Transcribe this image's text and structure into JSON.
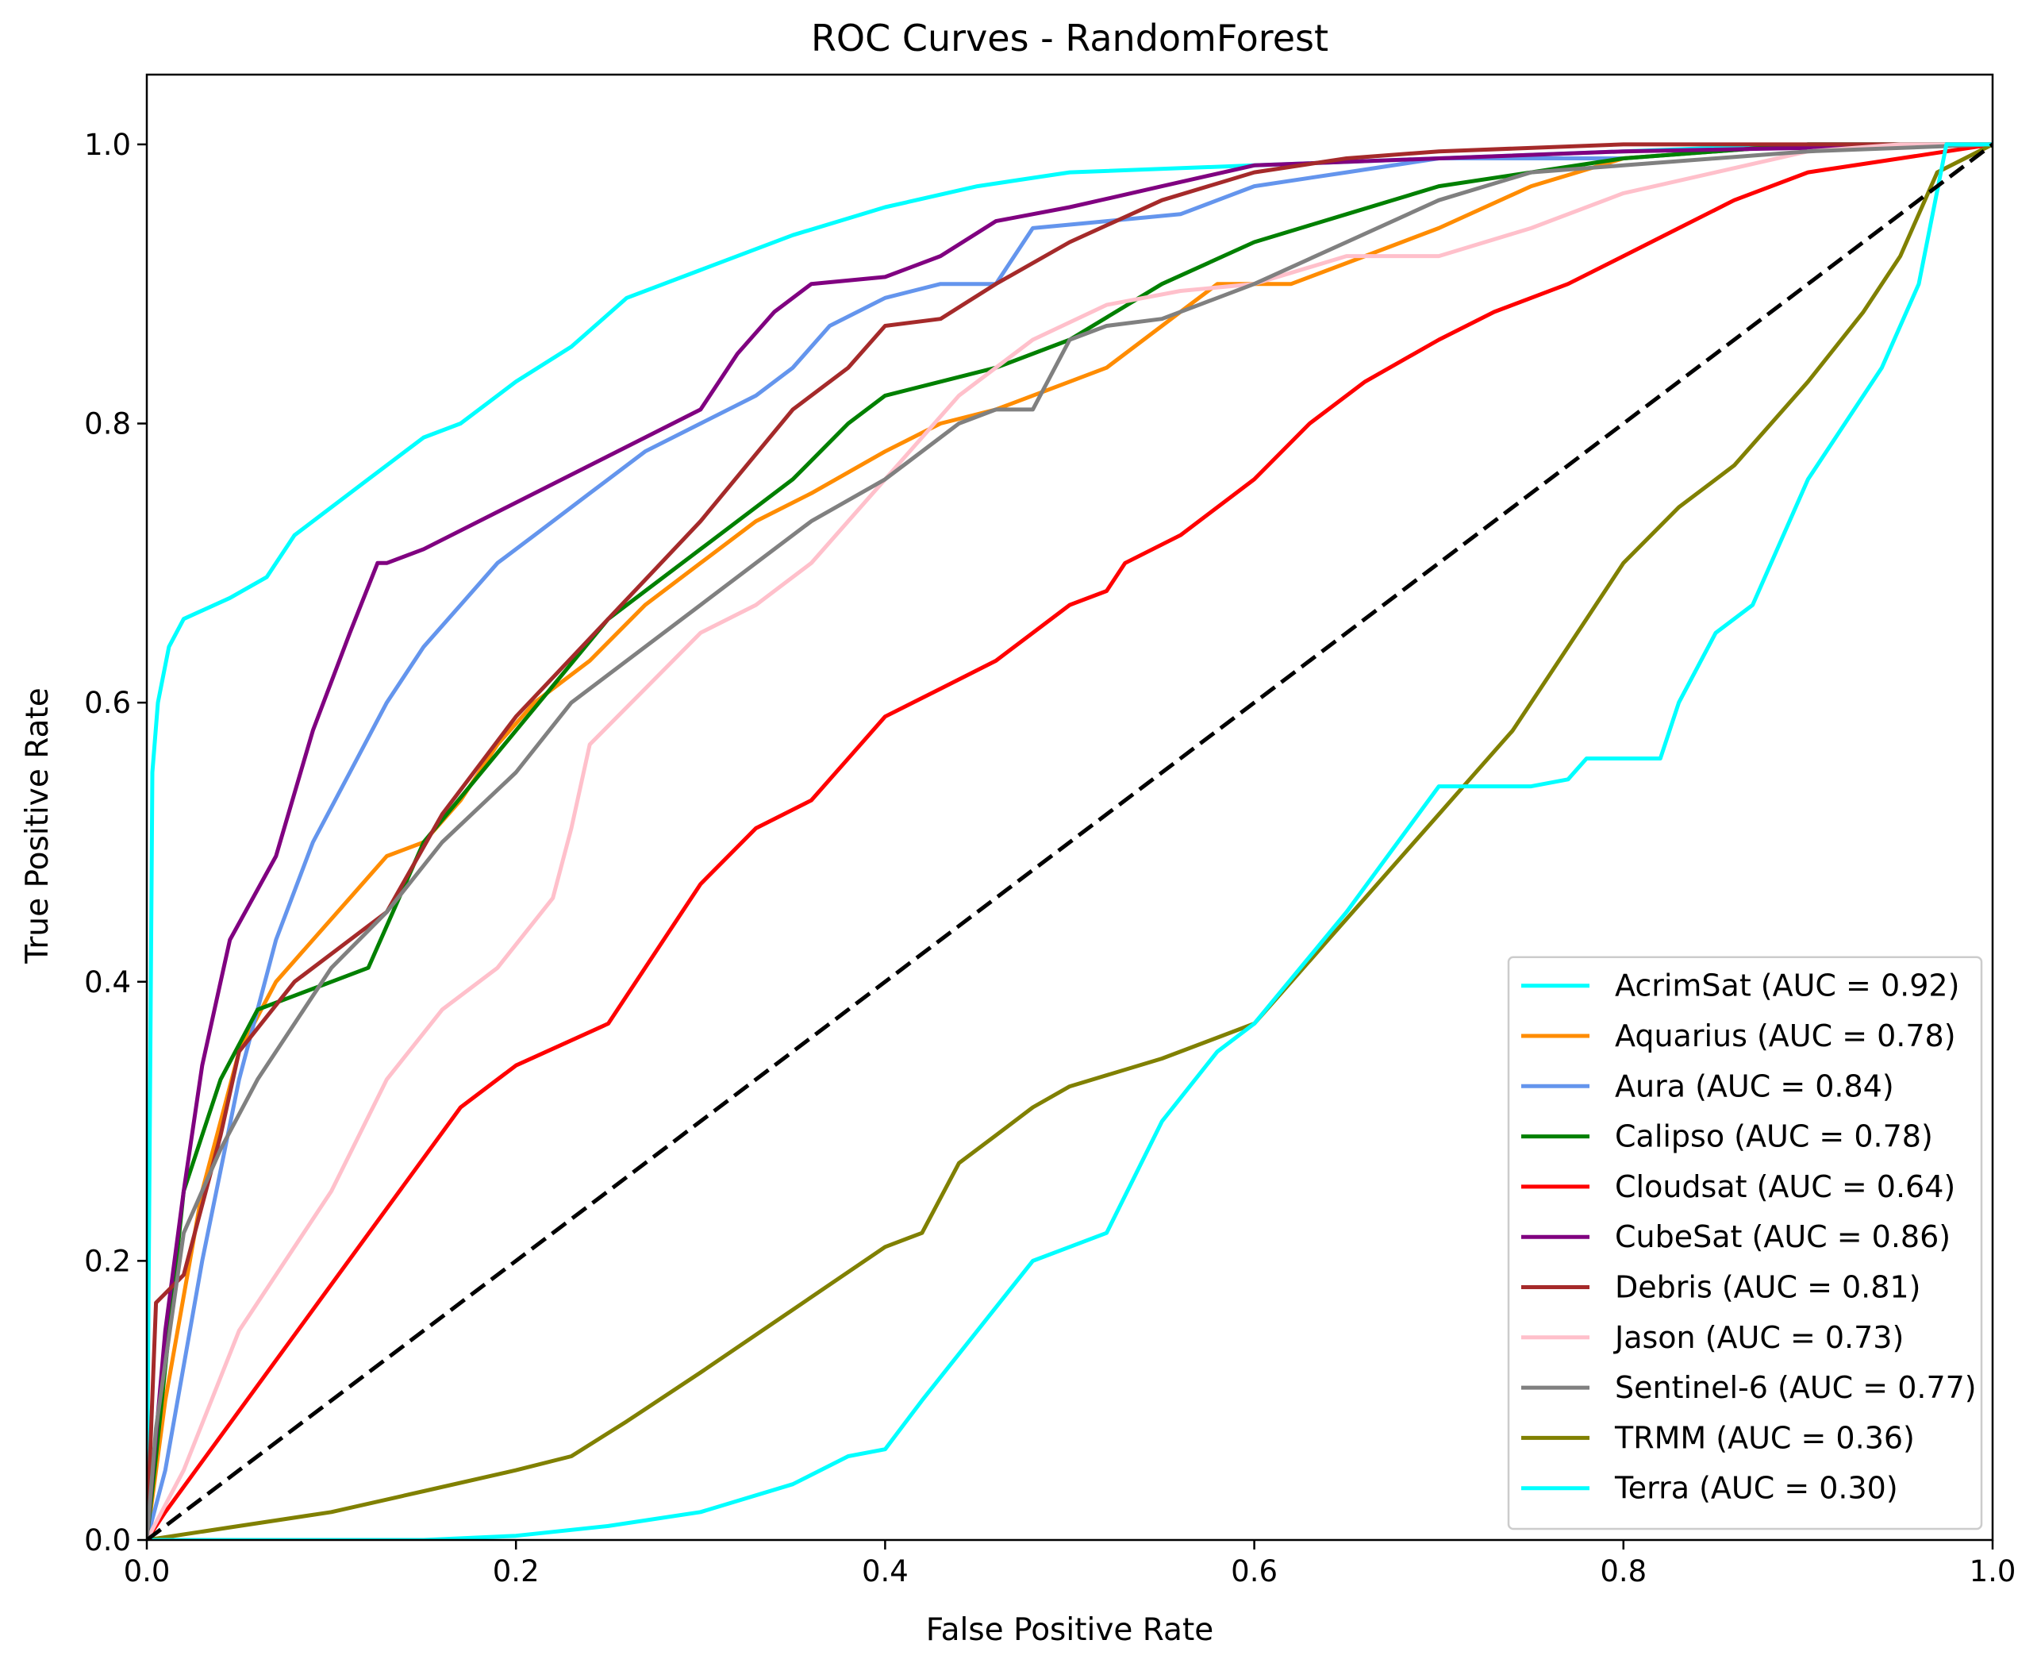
{
  "chart_data": {
    "type": "line",
    "title": "ROC Curves - RandomForest",
    "xlabel": "False Positive Rate",
    "ylabel": "True Positive Rate",
    "xlim": [
      0.0,
      1.0
    ],
    "ylim": [
      0.0,
      1.05
    ],
    "xticks": [
      "0.0",
      "0.2",
      "0.4",
      "0.6",
      "0.8",
      "1.0"
    ],
    "yticks": [
      "0.0",
      "0.2",
      "0.4",
      "0.6",
      "0.8",
      "1.0"
    ],
    "grid": false,
    "legend_position": "lower-right",
    "baseline": {
      "x": [
        0,
        1
      ],
      "y": [
        0,
        1
      ],
      "color": "#000000",
      "style": "dashed"
    },
    "series": [
      {
        "name": "AcrimSat (AUC = 0.92)",
        "color": "#00ffff",
        "x": [
          0,
          0.003,
          0.006,
          0.012,
          0.02,
          0.045,
          0.065,
          0.08,
          0.1,
          0.12,
          0.15,
          0.17,
          0.2,
          0.23,
          0.26,
          0.3,
          0.35,
          0.4,
          0.45,
          0.5,
          0.6,
          0.7,
          0.8,
          0.9,
          1.0
        ],
        "y": [
          0,
          0.55,
          0.6,
          0.64,
          0.66,
          0.675,
          0.69,
          0.72,
          0.74,
          0.76,
          0.79,
          0.8,
          0.83,
          0.855,
          0.89,
          0.91,
          0.935,
          0.955,
          0.97,
          0.98,
          0.985,
          0.99,
          0.995,
          1.0,
          1.0
        ]
      },
      {
        "name": "Aquarius (AUC = 0.78)",
        "color": "#ff8c00",
        "x": [
          0,
          0.01,
          0.03,
          0.05,
          0.07,
          0.09,
          0.11,
          0.13,
          0.15,
          0.17,
          0.19,
          0.21,
          0.24,
          0.27,
          0.3,
          0.33,
          0.36,
          0.4,
          0.43,
          0.46,
          0.5,
          0.52,
          0.55,
          0.58,
          0.62,
          0.66,
          0.7,
          0.75,
          0.8,
          0.9,
          1.0
        ],
        "y": [
          0,
          0.1,
          0.25,
          0.35,
          0.4,
          0.43,
          0.46,
          0.49,
          0.5,
          0.53,
          0.57,
          0.6,
          0.63,
          0.67,
          0.7,
          0.73,
          0.75,
          0.78,
          0.8,
          0.81,
          0.83,
          0.84,
          0.87,
          0.9,
          0.9,
          0.92,
          0.94,
          0.97,
          0.99,
          1.0,
          1.0
        ]
      },
      {
        "name": "Aura (AUC = 0.84)",
        "color": "#6495ed",
        "x": [
          0,
          0.01,
          0.03,
          0.05,
          0.07,
          0.09,
          0.11,
          0.13,
          0.15,
          0.17,
          0.19,
          0.21,
          0.24,
          0.27,
          0.3,
          0.33,
          0.35,
          0.37,
          0.4,
          0.43,
          0.46,
          0.48,
          0.52,
          0.56,
          0.6,
          0.65,
          0.7,
          0.8,
          0.9,
          1.0
        ],
        "y": [
          0,
          0.05,
          0.2,
          0.33,
          0.43,
          0.5,
          0.55,
          0.6,
          0.64,
          0.67,
          0.7,
          0.72,
          0.75,
          0.78,
          0.8,
          0.82,
          0.84,
          0.87,
          0.89,
          0.9,
          0.9,
          0.94,
          0.945,
          0.95,
          0.97,
          0.98,
          0.99,
          0.99,
          1.0,
          1.0
        ]
      },
      {
        "name": "Calipso (AUC = 0.78)",
        "color": "#008000",
        "x": [
          0,
          0.005,
          0.02,
          0.04,
          0.06,
          0.08,
          0.1,
          0.12,
          0.15,
          0.2,
          0.25,
          0.3,
          0.35,
          0.38,
          0.4,
          0.43,
          0.46,
          0.5,
          0.55,
          0.6,
          0.65,
          0.7,
          0.75,
          0.8,
          0.9,
          1.0
        ],
        "y": [
          0,
          0.06,
          0.25,
          0.33,
          0.38,
          0.39,
          0.4,
          0.41,
          0.5,
          0.58,
          0.66,
          0.71,
          0.76,
          0.8,
          0.82,
          0.83,
          0.84,
          0.86,
          0.9,
          0.93,
          0.95,
          0.97,
          0.98,
          0.99,
          1.0,
          1.0
        ]
      },
      {
        "name": "Cloudsat (AUC = 0.64)",
        "color": "#ff0000",
        "x": [
          0,
          0.01,
          0.17,
          0.2,
          0.25,
          0.3,
          0.33,
          0.36,
          0.38,
          0.4,
          0.43,
          0.46,
          0.48,
          0.5,
          0.52,
          0.53,
          0.56,
          0.6,
          0.63,
          0.66,
          0.7,
          0.73,
          0.77,
          0.8,
          0.83,
          0.86,
          0.9,
          0.95,
          1.0
        ],
        "y": [
          0,
          0.02,
          0.31,
          0.34,
          0.37,
          0.47,
          0.51,
          0.53,
          0.56,
          0.59,
          0.61,
          0.63,
          0.65,
          0.67,
          0.68,
          0.7,
          0.72,
          0.76,
          0.8,
          0.83,
          0.86,
          0.88,
          0.9,
          0.92,
          0.94,
          0.96,
          0.98,
          0.99,
          1.0
        ]
      },
      {
        "name": "CubeSat (AUC = 0.86)",
        "color": "#800080",
        "x": [
          0,
          0.01,
          0.02,
          0.03,
          0.04,
          0.045,
          0.07,
          0.09,
          0.11,
          0.125,
          0.13,
          0.15,
          0.3,
          0.31,
          0.32,
          0.34,
          0.36,
          0.4,
          0.43,
          0.46,
          0.5,
          0.55,
          0.6,
          0.7,
          0.8,
          1.0
        ],
        "y": [
          0,
          0.15,
          0.25,
          0.34,
          0.4,
          0.43,
          0.49,
          0.58,
          0.65,
          0.7,
          0.7,
          0.71,
          0.81,
          0.83,
          0.85,
          0.88,
          0.9,
          0.905,
          0.92,
          0.945,
          0.955,
          0.97,
          0.985,
          0.99,
          0.995,
          1.0
        ]
      },
      {
        "name": "Debris (AUC = 0.81)",
        "color": "#a52a2a",
        "x": [
          0,
          0.005,
          0.02,
          0.04,
          0.05,
          0.08,
          0.1,
          0.13,
          0.16,
          0.2,
          0.25,
          0.3,
          0.35,
          0.38,
          0.4,
          0.43,
          0.46,
          0.5,
          0.55,
          0.6,
          0.65,
          0.7,
          0.8,
          1.0
        ],
        "y": [
          0,
          0.17,
          0.19,
          0.29,
          0.35,
          0.4,
          0.42,
          0.45,
          0.52,
          0.59,
          0.66,
          0.73,
          0.81,
          0.84,
          0.87,
          0.875,
          0.9,
          0.93,
          0.96,
          0.98,
          0.99,
          0.995,
          1.0,
          1.0
        ]
      },
      {
        "name": "Jason (AUC = 0.73)",
        "color": "#ffc0cb",
        "x": [
          0,
          0.02,
          0.05,
          0.07,
          0.1,
          0.13,
          0.16,
          0.19,
          0.22,
          0.23,
          0.24,
          0.27,
          0.3,
          0.33,
          0.36,
          0.4,
          0.44,
          0.48,
          0.52,
          0.56,
          0.6,
          0.65,
          0.7,
          0.75,
          0.8,
          0.85,
          0.9,
          0.95,
          1.0
        ],
        "y": [
          0,
          0.05,
          0.15,
          0.19,
          0.25,
          0.33,
          0.38,
          0.41,
          0.46,
          0.51,
          0.57,
          0.61,
          0.65,
          0.67,
          0.7,
          0.76,
          0.82,
          0.86,
          0.885,
          0.895,
          0.9,
          0.92,
          0.92,
          0.94,
          0.965,
          0.98,
          0.995,
          1.0,
          1.0
        ]
      },
      {
        "name": "Sentinel-6 (AUC = 0.77)",
        "color": "#808080",
        "x": [
          0,
          0.005,
          0.02,
          0.04,
          0.06,
          0.08,
          0.1,
          0.13,
          0.16,
          0.2,
          0.23,
          0.26,
          0.3,
          0.33,
          0.36,
          0.4,
          0.44,
          0.46,
          0.48,
          0.5,
          0.52,
          0.55,
          0.6,
          0.65,
          0.7,
          0.75,
          0.8,
          0.85,
          0.9,
          1.0
        ],
        "y": [
          0,
          0.08,
          0.22,
          0.28,
          0.33,
          0.37,
          0.41,
          0.45,
          0.5,
          0.55,
          0.6,
          0.63,
          0.67,
          0.7,
          0.73,
          0.76,
          0.8,
          0.81,
          0.81,
          0.86,
          0.87,
          0.875,
          0.9,
          0.93,
          0.96,
          0.98,
          0.985,
          0.99,
          0.995,
          1.0
        ]
      },
      {
        "name": "TRMM (AUC = 0.36)",
        "color": "#808000",
        "x": [
          0,
          0.05,
          0.1,
          0.15,
          0.2,
          0.23,
          0.26,
          0.3,
          0.35,
          0.4,
          0.42,
          0.44,
          0.46,
          0.48,
          0.5,
          0.55,
          0.6,
          0.62,
          0.64,
          0.66,
          0.68,
          0.7,
          0.72,
          0.74,
          0.76,
          0.78,
          0.8,
          0.83,
          0.86,
          0.9,
          0.93,
          0.95,
          0.97,
          1.0
        ],
        "y": [
          0,
          0.01,
          0.02,
          0.035,
          0.05,
          0.06,
          0.085,
          0.12,
          0.165,
          0.21,
          0.22,
          0.27,
          0.29,
          0.31,
          0.325,
          0.345,
          0.37,
          0.4,
          0.43,
          0.46,
          0.49,
          0.52,
          0.55,
          0.58,
          0.62,
          0.66,
          0.7,
          0.74,
          0.77,
          0.83,
          0.88,
          0.92,
          0.98,
          1.0
        ]
      },
      {
        "name": "Terra (AUC = 0.30)",
        "color": "#00ffff",
        "x": [
          0,
          0.15,
          0.2,
          0.25,
          0.3,
          0.35,
          0.38,
          0.4,
          0.42,
          0.45,
          0.48,
          0.5,
          0.52,
          0.55,
          0.58,
          0.6,
          0.65,
          0.7,
          0.75,
          0.77,
          0.78,
          0.82,
          0.83,
          0.85,
          0.87,
          0.89,
          0.9,
          0.92,
          0.94,
          0.96,
          0.975,
          1.0
        ],
        "y": [
          0,
          0.0,
          0.003,
          0.01,
          0.02,
          0.04,
          0.06,
          0.065,
          0.1,
          0.15,
          0.2,
          0.21,
          0.22,
          0.3,
          0.35,
          0.37,
          0.45,
          0.54,
          0.54,
          0.545,
          0.56,
          0.56,
          0.6,
          0.65,
          0.67,
          0.73,
          0.76,
          0.8,
          0.84,
          0.9,
          1.0,
          1.0
        ]
      }
    ]
  }
}
